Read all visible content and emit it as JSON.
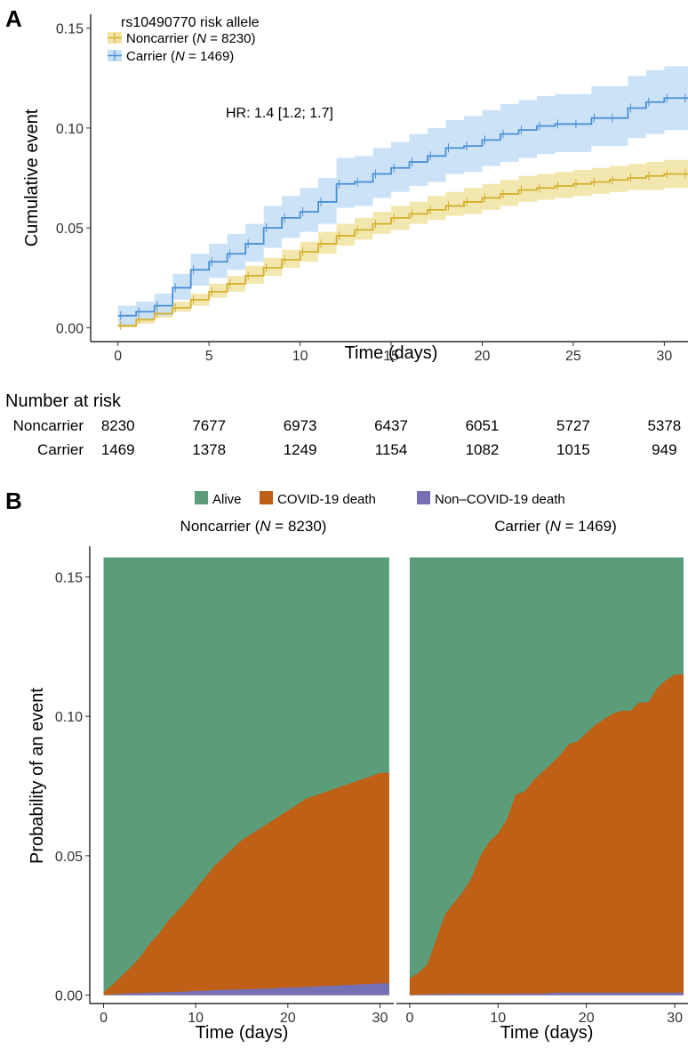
{
  "panel_a": {
    "label": "A",
    "legend_title": "rs10490770 risk allele",
    "legend": [
      {
        "pre": "Noncarrier (",
        "n": "N",
        "post": " = 8230)",
        "color": "#d4b02e",
        "band": "#f1e4a6"
      },
      {
        "pre": "Carrier (",
        "n": "N",
        "post": " = 1469)",
        "color": "#4a8fd4",
        "band": "#c5dff6"
      }
    ],
    "hr_text": "HR: 1.4 [1.2; 1.7]",
    "risk_table": {
      "title": "Number at risk",
      "rows": [
        {
          "label": "Noncarrier",
          "values": [
            "8230",
            "7677",
            "6973",
            "6437",
            "6051",
            "5727",
            "5378"
          ]
        },
        {
          "label": "Carrier",
          "values": [
            "1469",
            "1378",
            "1249",
            "1154",
            "1082",
            "1015",
            "949"
          ]
        }
      ]
    }
  },
  "panel_b": {
    "label": "B",
    "legend": [
      {
        "label": "Alive",
        "color": "#5a9d78"
      },
      {
        "label": "COVID-19 death",
        "color": "#c05f16"
      },
      {
        "label": "Non–COVID-19 death",
        "color": "#7570b3"
      }
    ],
    "facets": [
      {
        "pre": "Noncarrier (",
        "n": "N",
        "post": " = 8230)"
      },
      {
        "pre": "Carrier (",
        "n": "N",
        "post": " = 1469)"
      }
    ]
  },
  "chart_data": [
    {
      "type": "line",
      "subtype": "step-with-confidence-band",
      "xlabel": "Time (days)",
      "ylabel": "Cumulative event",
      "xlim": [
        -1.5,
        31.3
      ],
      "ylim": [
        -0.007,
        0.157
      ],
      "xticks": [
        0,
        5,
        10,
        15,
        20,
        25,
        30
      ],
      "yticks": [
        0.0,
        0.05,
        0.1,
        0.15
      ],
      "ytick_labels": [
        "0.00",
        "0.05",
        "0.10",
        "0.15"
      ],
      "x": [
        0,
        1,
        2,
        3,
        4,
        5,
        6,
        7,
        8,
        9,
        10,
        11,
        12,
        13,
        14,
        15,
        16,
        17,
        18,
        19,
        20,
        21,
        22,
        23,
        24,
        25,
        26,
        27,
        28,
        29,
        30,
        31
      ],
      "series": [
        {
          "name": "Noncarrier",
          "color": "#d4b02e",
          "values": [
            0.001,
            0.004,
            0.007,
            0.01,
            0.014,
            0.018,
            0.022,
            0.026,
            0.03,
            0.034,
            0.038,
            0.042,
            0.046,
            0.049,
            0.052,
            0.055,
            0.057,
            0.059,
            0.061,
            0.063,
            0.065,
            0.067,
            0.069,
            0.07,
            0.071,
            0.072,
            0.073,
            0.074,
            0.075,
            0.076,
            0.077,
            0.077
          ],
          "lower": [
            0.0,
            0.002,
            0.005,
            0.008,
            0.011,
            0.015,
            0.018,
            0.022,
            0.026,
            0.03,
            0.033,
            0.037,
            0.041,
            0.044,
            0.047,
            0.049,
            0.052,
            0.054,
            0.056,
            0.057,
            0.059,
            0.061,
            0.063,
            0.064,
            0.065,
            0.066,
            0.067,
            0.068,
            0.069,
            0.069,
            0.07,
            0.07
          ],
          "upper": [
            0.003,
            0.006,
            0.01,
            0.013,
            0.017,
            0.022,
            0.026,
            0.031,
            0.035,
            0.039,
            0.043,
            0.048,
            0.052,
            0.055,
            0.058,
            0.061,
            0.063,
            0.066,
            0.068,
            0.07,
            0.072,
            0.074,
            0.076,
            0.077,
            0.078,
            0.079,
            0.08,
            0.081,
            0.082,
            0.083,
            0.084,
            0.084
          ]
        },
        {
          "name": "Carrier",
          "color": "#4a8fd4",
          "values": [
            0.006,
            0.008,
            0.011,
            0.02,
            0.029,
            0.033,
            0.037,
            0.042,
            0.05,
            0.055,
            0.058,
            0.063,
            0.072,
            0.073,
            0.077,
            0.08,
            0.083,
            0.086,
            0.09,
            0.091,
            0.094,
            0.097,
            0.099,
            0.101,
            0.102,
            0.102,
            0.105,
            0.105,
            0.11,
            0.113,
            0.115,
            0.115
          ],
          "lower": [
            0.001,
            0.004,
            0.006,
            0.014,
            0.021,
            0.025,
            0.029,
            0.033,
            0.04,
            0.045,
            0.048,
            0.052,
            0.06,
            0.061,
            0.065,
            0.068,
            0.071,
            0.073,
            0.077,
            0.078,
            0.081,
            0.083,
            0.085,
            0.087,
            0.088,
            0.088,
            0.091,
            0.091,
            0.095,
            0.097,
            0.099,
            0.099
          ],
          "upper": [
            0.011,
            0.013,
            0.017,
            0.027,
            0.037,
            0.042,
            0.047,
            0.052,
            0.061,
            0.066,
            0.07,
            0.075,
            0.085,
            0.086,
            0.09,
            0.093,
            0.097,
            0.1,
            0.104,
            0.106,
            0.109,
            0.112,
            0.114,
            0.116,
            0.117,
            0.117,
            0.121,
            0.121,
            0.126,
            0.129,
            0.131,
            0.131
          ]
        }
      ]
    },
    {
      "type": "area",
      "facet": "Noncarrier",
      "xlabel": "Time (days)",
      "ylabel": "Probability of an event",
      "xlim": [
        -1.5,
        31.5
      ],
      "ylim": [
        -0.003,
        0.161
      ],
      "xticks": [
        0,
        10,
        20,
        30
      ],
      "yticks": [
        0.0,
        0.05,
        0.1,
        0.15
      ],
      "ytick_labels": [
        "0.00",
        "0.05",
        "0.10",
        "0.15"
      ],
      "top": 0.157,
      "x": [
        0,
        1,
        2,
        3,
        4,
        5,
        6,
        7,
        8,
        9,
        10,
        11,
        12,
        13,
        14,
        15,
        16,
        17,
        18,
        19,
        20,
        21,
        22,
        23,
        24,
        25,
        26,
        27,
        28,
        29,
        30,
        31
      ],
      "series": [
        {
          "name": "Non–COVID-19 death",
          "values": [
            0.0,
            0.0003,
            0.0005,
            0.0007,
            0.0008,
            0.0009,
            0.001,
            0.0011,
            0.0012,
            0.0013,
            0.0015,
            0.0016,
            0.0018,
            0.0019,
            0.002,
            0.0021,
            0.0022,
            0.0023,
            0.0024,
            0.0026,
            0.0027,
            0.0028,
            0.003,
            0.0031,
            0.0033,
            0.0034,
            0.0036,
            0.0037,
            0.0039,
            0.004,
            0.0042,
            0.0042
          ]
        },
        {
          "name": "COVID-19 death",
          "values": [
            0.001,
            0.0035,
            0.0065,
            0.0095,
            0.013,
            0.0175,
            0.021,
            0.0255,
            0.029,
            0.0325,
            0.0365,
            0.0405,
            0.0445,
            0.0475,
            0.0505,
            0.0535,
            0.0555,
            0.0575,
            0.0595,
            0.0615,
            0.0635,
            0.0655,
            0.0675,
            0.0685,
            0.0695,
            0.0705,
            0.0715,
            0.0725,
            0.0735,
            0.0745,
            0.0755,
            0.0755
          ]
        }
      ]
    },
    {
      "type": "area",
      "facet": "Carrier",
      "xlabel": "Time (days)",
      "ylabel": "",
      "xlim": [
        -1.5,
        31.5
      ],
      "ylim": [
        -0.003,
        0.161
      ],
      "xticks": [
        0,
        10,
        20,
        30
      ],
      "xtick_labels": [
        "0",
        "10",
        "20",
        "30"
      ],
      "top": 0.157,
      "x": [
        0,
        1,
        2,
        3,
        4,
        5,
        6,
        7,
        8,
        9,
        10,
        11,
        12,
        13,
        14,
        15,
        16,
        17,
        18,
        19,
        20,
        21,
        22,
        23,
        24,
        25,
        26,
        27,
        28,
        29,
        30,
        31
      ],
      "series": [
        {
          "name": "Non–COVID-19 death",
          "values": [
            0.0,
            0.0002,
            0.0003,
            0.0004,
            0.0004,
            0.0005,
            0.0005,
            0.0005,
            0.0005,
            0.0005,
            0.0005,
            0.0005,
            0.0006,
            0.0006,
            0.0006,
            0.0006,
            0.0008,
            0.0009,
            0.0009,
            0.0009,
            0.0009,
            0.0009,
            0.0009,
            0.0009,
            0.0009,
            0.0009,
            0.0009,
            0.0009,
            0.0009,
            0.0009,
            0.0009,
            0.0009
          ]
        },
        {
          "name": "COVID-19 death",
          "values": [
            0.006,
            0.0078,
            0.0107,
            0.0196,
            0.0286,
            0.0325,
            0.0365,
            0.0415,
            0.0495,
            0.0545,
            0.0575,
            0.0625,
            0.0714,
            0.0724,
            0.0764,
            0.0794,
            0.0821,
            0.0851,
            0.0891,
            0.0901,
            0.0931,
            0.0961,
            0.0981,
            0.1001,
            0.1011,
            0.1011,
            0.1041,
            0.1041,
            0.1091,
            0.1121,
            0.1141,
            0.1141
          ]
        }
      ]
    }
  ]
}
